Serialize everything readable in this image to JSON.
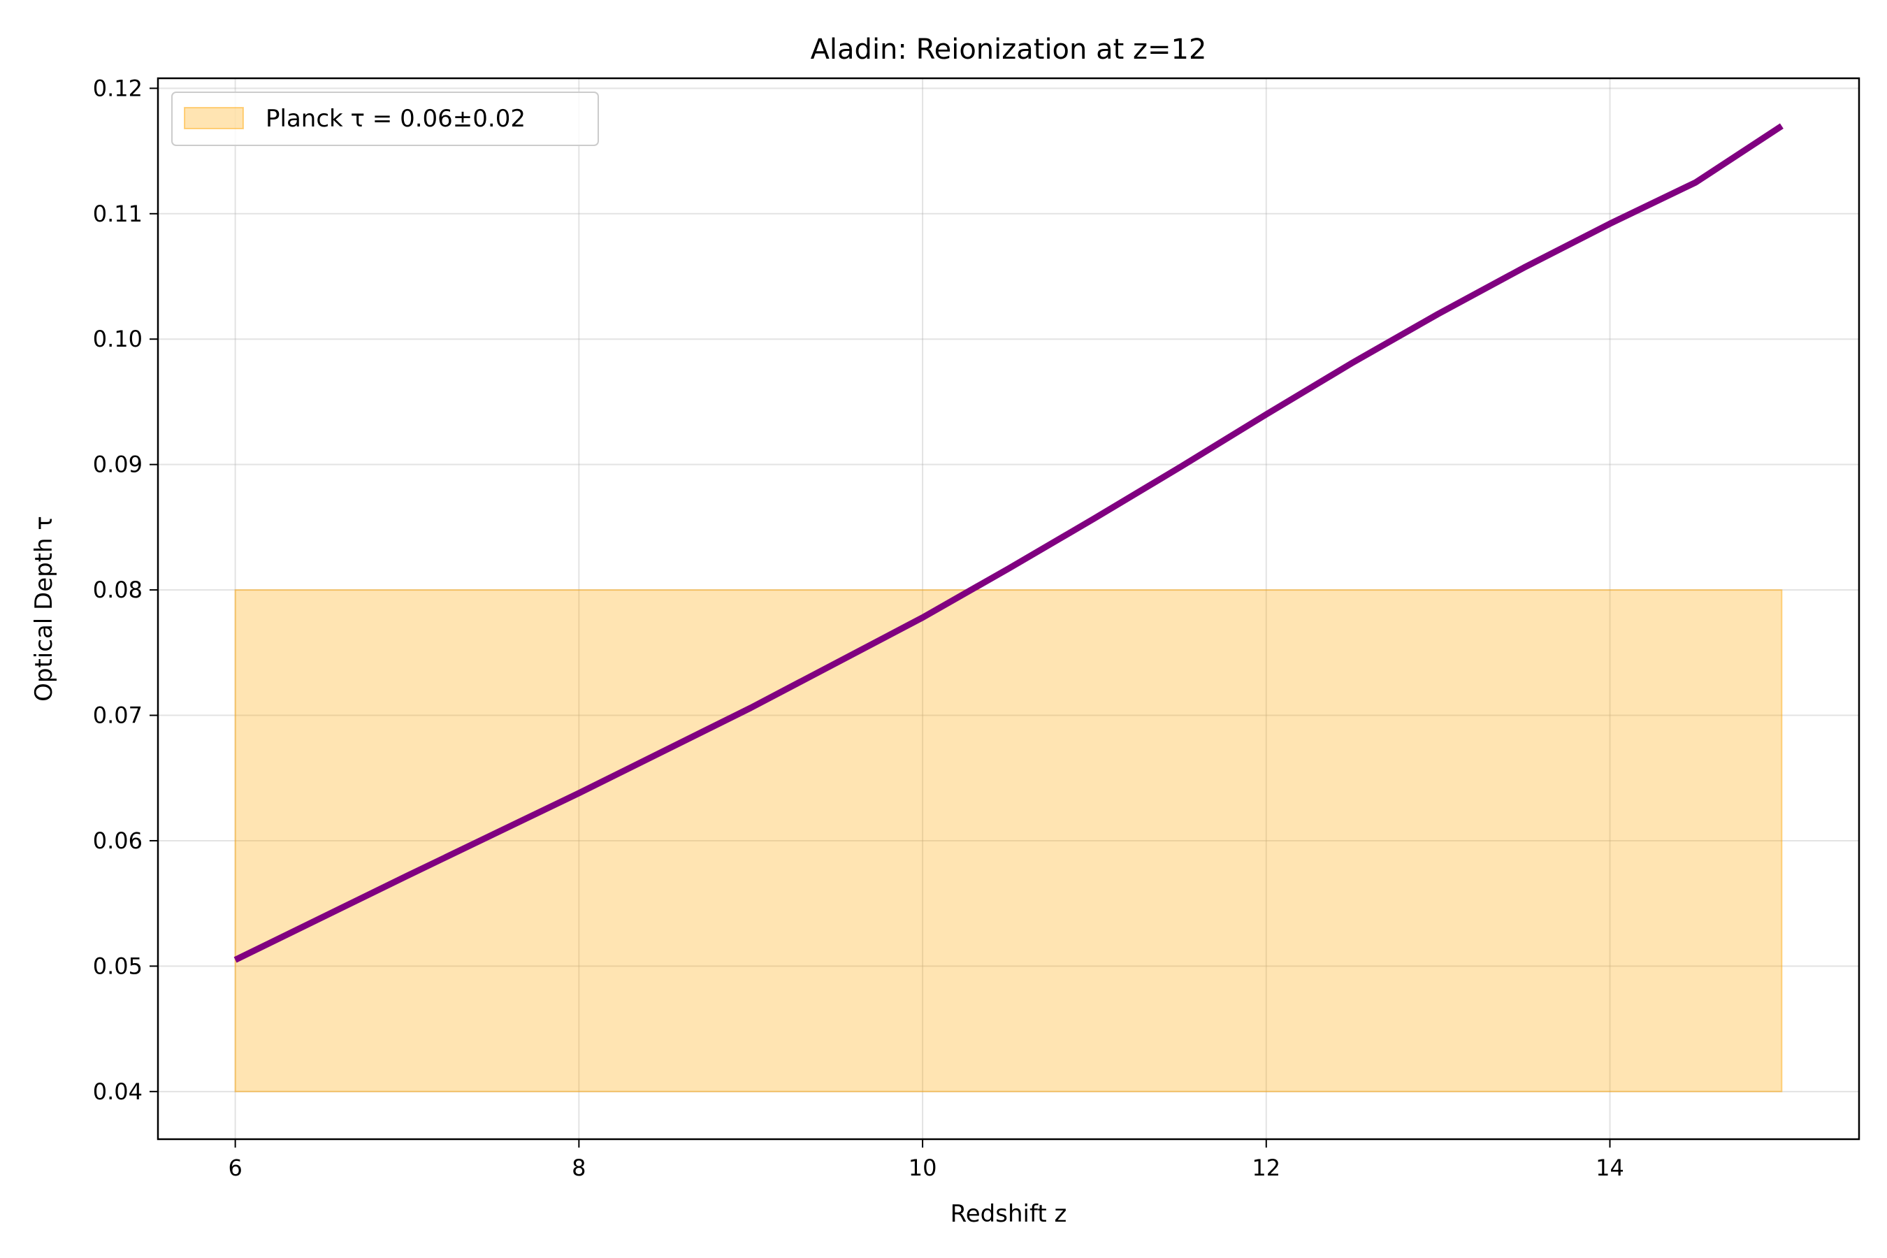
{
  "chart_data": {
    "type": "line",
    "title": "Aladin: Reionization at z=12",
    "xlabel": "Redshift z",
    "ylabel": "Optical Depth τ",
    "xlim": [
      5.55,
      15.45
    ],
    "ylim": [
      0.0362,
      0.1208
    ],
    "xticks": [
      6,
      8,
      10,
      12,
      14
    ],
    "xtick_labels": [
      "6",
      "8",
      "10",
      "12",
      "14"
    ],
    "yticks": [
      0.04,
      0.05,
      0.06,
      0.07,
      0.08,
      0.09,
      0.1,
      0.11,
      0.12
    ],
    "ytick_labels": [
      "0.04",
      "0.05",
      "0.06",
      "0.07",
      "0.08",
      "0.09",
      "0.10",
      "0.11",
      "0.12"
    ],
    "grid": true,
    "legend_position": "top-left",
    "series": [
      {
        "color": "#800080",
        "x": [
          6,
          7,
          8,
          9,
          10,
          10.5,
          11,
          11.5,
          12,
          12.5,
          13,
          13.5,
          14,
          14.5,
          15
        ],
        "y": [
          0.0505,
          0.0572,
          0.0638,
          0.0706,
          0.0778,
          0.0817,
          0.0857,
          0.0898,
          0.094,
          0.0981,
          0.102,
          0.1057,
          0.1092,
          0.1125,
          0.117
        ]
      }
    ],
    "band": {
      "name": "Planck τ = 0.06±0.02",
      "x": [
        6,
        15
      ],
      "y_low": 0.04,
      "y_high": 0.08,
      "color": "#ffa500",
      "opacity": 0.3
    }
  }
}
